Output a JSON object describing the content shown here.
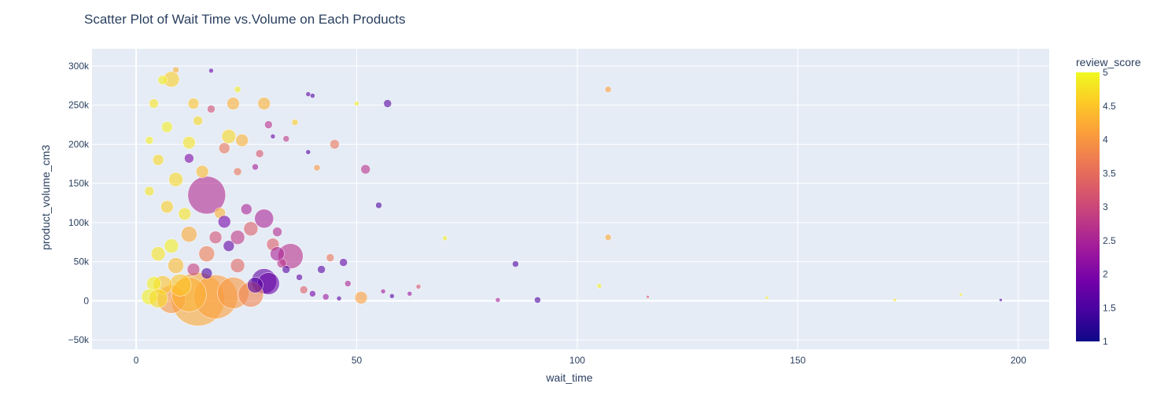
{
  "chart_data": {
    "type": "scatter",
    "title": "Scatter Plot of Wait Time vs.Volume on Each Products",
    "xlabel": "wait_time",
    "ylabel": "product_volume_cm3",
    "xlim": [
      -10,
      207
    ],
    "ylim": [
      -62000,
      322000
    ],
    "x_ticks": [
      0,
      50,
      100,
      150,
      200
    ],
    "x_tick_labels": [
      "0",
      "50",
      "100",
      "150",
      "200"
    ],
    "y_ticks": [
      -50000,
      0,
      50000,
      100000,
      150000,
      200000,
      250000,
      300000
    ],
    "y_tick_labels": [
      "−50k",
      "0",
      "50k",
      "100k",
      "150k",
      "200k",
      "250k",
      "300k"
    ],
    "colorbar": {
      "title": "review_score",
      "range": [
        1,
        5
      ],
      "ticks": [
        1,
        1.5,
        2,
        2.5,
        3,
        3.5,
        4,
        4.5,
        5
      ],
      "tick_labels": [
        "1",
        "1.5",
        "2",
        "2.5",
        "3",
        "3.5",
        "4",
        "4.5",
        "5"
      ],
      "colorscale": [
        "#0d0887",
        "#46039f",
        "#7201a8",
        "#9c179e",
        "#bd3786",
        "#d8576b",
        "#ed7953",
        "#fb9f3a",
        "#fdca26",
        "#f0f921"
      ]
    },
    "grid": true,
    "marker_opacity": 0.6,
    "points_note_fields": [
      "x",
      "y",
      "score",
      "size"
    ],
    "points": [
      [
        14,
        2000,
        4.2,
        34
      ],
      [
        18,
        5000,
        4.1,
        28
      ],
      [
        16,
        135000,
        2.6,
        24
      ],
      [
        35,
        57000,
        2.7,
        16
      ],
      [
        29,
        25000,
        1.7,
        16
      ],
      [
        30,
        22000,
        1.8,
        14
      ],
      [
        29,
        105000,
        2.5,
        12
      ],
      [
        8,
        2000,
        4.0,
        18
      ],
      [
        12,
        8000,
        4.3,
        22
      ],
      [
        22,
        10000,
        4.0,
        20
      ],
      [
        26,
        8000,
        3.8,
        16
      ],
      [
        10,
        20000,
        4.5,
        14
      ],
      [
        8,
        283000,
        4.6,
        10
      ],
      [
        21,
        210000,
        4.7,
        9
      ],
      [
        29,
        252000,
        4.3,
        8
      ],
      [
        22,
        252000,
        4.3,
        8
      ],
      [
        13,
        252000,
        4.5,
        7
      ],
      [
        24,
        205000,
        4.3,
        8
      ],
      [
        12,
        202000,
        4.8,
        8
      ],
      [
        20,
        195000,
        3.6,
        7
      ],
      [
        7,
        222000,
        4.9,
        7
      ],
      [
        15,
        165000,
        4.4,
        8
      ],
      [
        9,
        155000,
        4.7,
        9
      ],
      [
        4,
        252000,
        4.8,
        6
      ],
      [
        12,
        182000,
        2.0,
        6
      ],
      [
        45,
        200000,
        3.6,
        6
      ],
      [
        52,
        168000,
        2.7,
        6
      ],
      [
        57,
        252000,
        1.6,
        5
      ],
      [
        107,
        270000,
        4.1,
        4
      ],
      [
        107,
        81000,
        4.2,
        4
      ],
      [
        51,
        4000,
        4.1,
        8
      ],
      [
        86,
        47000,
        1.5,
        4
      ],
      [
        91,
        1000,
        1.5,
        4
      ],
      [
        82,
        1000,
        2.5,
        3
      ],
      [
        44,
        55000,
        3.6,
        5
      ],
      [
        42,
        40000,
        1.6,
        5
      ],
      [
        55,
        122000,
        1.5,
        4
      ],
      [
        41,
        170000,
        4.0,
        4
      ],
      [
        39,
        190000,
        1.5,
        3
      ],
      [
        40,
        262000,
        1.5,
        3
      ],
      [
        47,
        49000,
        1.7,
        5
      ],
      [
        48,
        22000,
        2.5,
        4
      ],
      [
        36,
        228000,
        4.6,
        4
      ],
      [
        34,
        207000,
        2.8,
        4
      ],
      [
        30,
        225000,
        2.7,
        5
      ],
      [
        31,
        210000,
        1.8,
        3
      ],
      [
        28,
        188000,
        3.2,
        5
      ],
      [
        27,
        171000,
        2.4,
        4
      ],
      [
        23,
        165000,
        3.6,
        5
      ],
      [
        25,
        117000,
        2.5,
        7
      ],
      [
        19,
        112000,
        4.3,
        7
      ],
      [
        20,
        101000,
        1.9,
        8
      ],
      [
        26,
        92000,
        3.3,
        9
      ],
      [
        23,
        81000,
        2.8,
        9
      ],
      [
        18,
        81000,
        3.1,
        8
      ],
      [
        11,
        111000,
        4.8,
        8
      ],
      [
        6,
        20000,
        4.5,
        12
      ],
      [
        4,
        22000,
        4.9,
        9
      ],
      [
        9,
        45000,
        4.4,
        10
      ],
      [
        12,
        85000,
        4.2,
        10
      ],
      [
        16,
        60000,
        3.7,
        10
      ],
      [
        23,
        45000,
        3.4,
        9
      ],
      [
        31,
        72000,
        3.3,
        8
      ],
      [
        32,
        88000,
        2.6,
        6
      ],
      [
        33,
        48000,
        2.7,
        6
      ],
      [
        34,
        40000,
        1.6,
        5
      ],
      [
        37,
        30000,
        1.7,
        4
      ],
      [
        38,
        14000,
        3.3,
        5
      ],
      [
        40,
        9000,
        1.9,
        4
      ],
      [
        43,
        5000,
        2.3,
        4
      ],
      [
        46,
        3000,
        1.6,
        3
      ],
      [
        56,
        12000,
        2.4,
        3
      ],
      [
        58,
        6000,
        1.6,
        3
      ],
      [
        62,
        9000,
        2.3,
        3
      ],
      [
        64,
        18000,
        3.2,
        3
      ],
      [
        70,
        80000,
        4.9,
        3
      ],
      [
        105,
        19000,
        4.9,
        3
      ],
      [
        116,
        5000,
        3.2,
        2
      ],
      [
        143,
        4000,
        4.8,
        2
      ],
      [
        187,
        8000,
        4.9,
        2
      ],
      [
        196,
        1000,
        1.5,
        2
      ],
      [
        172,
        1000,
        4.8,
        2
      ],
      [
        3,
        205000,
        4.9,
        5
      ],
      [
        6,
        282000,
        4.9,
        6
      ],
      [
        9,
        295000,
        4.3,
        4
      ],
      [
        17,
        294000,
        1.8,
        3
      ],
      [
        23,
        270000,
        4.9,
        4
      ],
      [
        39,
        264000,
        1.7,
        3
      ],
      [
        50,
        252000,
        4.9,
        3
      ],
      [
        14,
        230000,
        4.7,
        6
      ],
      [
        17,
        245000,
        3.1,
        5
      ],
      [
        5,
        180000,
        4.7,
        7
      ],
      [
        3,
        140000,
        4.8,
        6
      ],
      [
        7,
        120000,
        4.6,
        8
      ],
      [
        8,
        70000,
        4.9,
        9
      ],
      [
        5,
        60000,
        4.8,
        9
      ],
      [
        3,
        5000,
        4.9,
        10
      ],
      [
        5,
        3000,
        4.7,
        12
      ],
      [
        27,
        20000,
        1.6,
        10
      ],
      [
        32,
        60000,
        2.5,
        9
      ],
      [
        13,
        40000,
        2.9,
        8
      ],
      [
        21,
        70000,
        1.7,
        7
      ],
      [
        16,
        35000,
        1.5,
        7
      ]
    ]
  }
}
